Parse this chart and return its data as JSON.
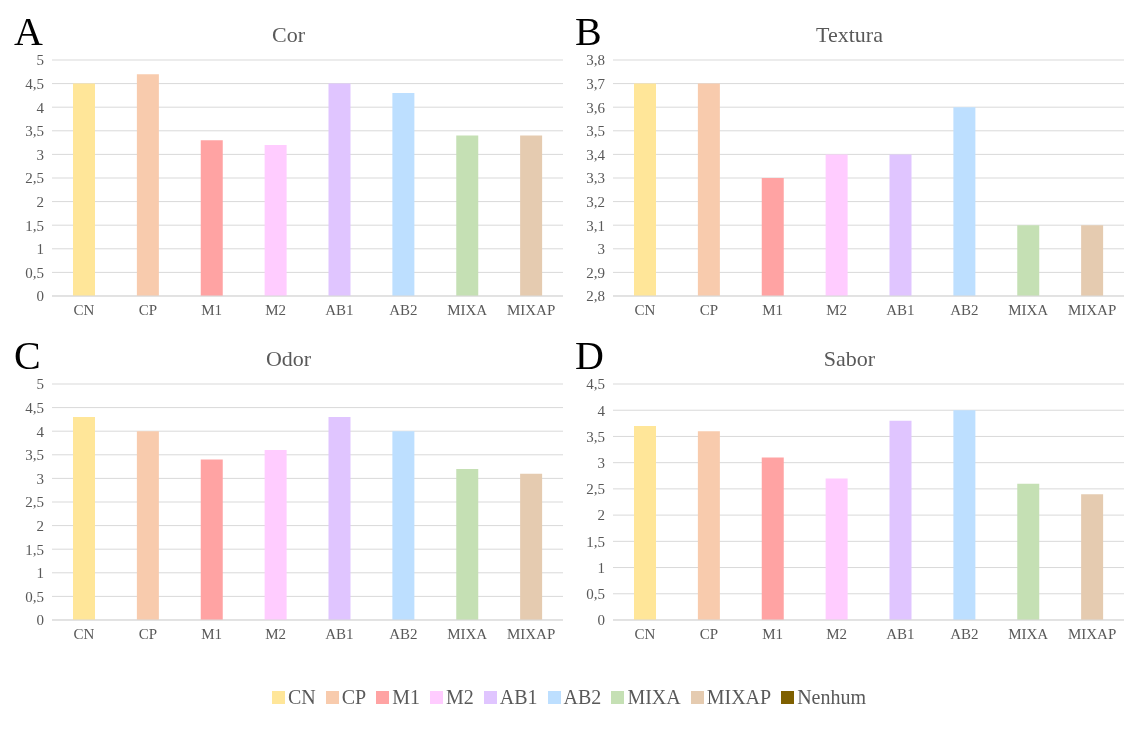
{
  "chart_data": [
    {
      "type": "bar",
      "title": "Cor",
      "annotations": [
        "A"
      ],
      "stacked": true,
      "grid": "y",
      "categories": [
        "CN",
        "CP",
        "M1",
        "M2",
        "AB1",
        "AB2",
        "MIXA",
        "MIXAP"
      ],
      "ylim": [
        0,
        5
      ],
      "yticks": [
        0,
        {
          "value": 0.5,
          "label": "0,5"
        },
        1,
        {
          "value": 1.5,
          "label": "1,5"
        },
        2,
        {
          "value": 2.5,
          "label": "2,5"
        },
        3,
        {
          "value": 3.5,
          "label": "3,5"
        },
        4,
        {
          "value": 4.5,
          "label": "4,5"
        },
        5
      ],
      "series": [
        {
          "color": "#ffe699",
          "values": [
            4.5,
            null,
            null,
            null,
            null,
            null,
            null,
            null
          ]
        },
        {
          "color": "#f8cbad",
          "values": [
            null,
            4.7,
            null,
            null,
            null,
            null,
            null,
            null
          ]
        },
        {
          "color": "#ffa3a3",
          "values": [
            null,
            null,
            3.3,
            null,
            null,
            null,
            null,
            null
          ]
        },
        {
          "color": "#ffccff",
          "values": [
            null,
            null,
            null,
            3.2,
            null,
            null,
            null,
            null
          ]
        },
        {
          "color": "#e0c5ff",
          "values": [
            null,
            null,
            null,
            null,
            4.5,
            null,
            null,
            null
          ]
        },
        {
          "color": "#bddfff",
          "values": [
            null,
            null,
            null,
            null,
            null,
            4.3,
            null,
            null
          ]
        },
        {
          "color": "#c5e0b4",
          "values": [
            null,
            null,
            null,
            null,
            null,
            null,
            3.4,
            null
          ]
        },
        {
          "color": "#e5cbb0",
          "values": [
            null,
            null,
            null,
            null,
            null,
            null,
            null,
            3.4
          ]
        }
      ]
    },
    {
      "type": "bar",
      "title": "Textura",
      "annotations": [
        "B"
      ],
      "stacked": true,
      "grid": "y",
      "categories": [
        "CN",
        "CP",
        "M1",
        "M2",
        "AB1",
        "AB2",
        "MIXA",
        "MIXAP"
      ],
      "ylim": [
        2.8,
        3.8
      ],
      "yticks": [
        {
          "value": 2.8,
          "label": "2,8"
        },
        {
          "value": 2.9,
          "label": "2,9"
        },
        3,
        {
          "value": 3.1,
          "label": "3,1"
        },
        {
          "value": 3.2,
          "label": "3,2"
        },
        {
          "value": 3.3,
          "label": "3,3"
        },
        {
          "value": 3.4,
          "label": "3,4"
        },
        {
          "value": 3.5,
          "label": "3,5"
        },
        {
          "value": 3.6,
          "label": "3,6"
        },
        {
          "value": 3.7,
          "label": "3,7"
        },
        {
          "value": 3.8,
          "label": "3,8"
        }
      ],
      "series": [
        {
          "color": "#ffe699",
          "values": [
            3.7,
            null,
            null,
            null,
            null,
            null,
            null,
            null
          ]
        },
        {
          "color": "#f8cbad",
          "values": [
            null,
            3.7,
            null,
            null,
            null,
            null,
            null,
            null
          ]
        },
        {
          "color": "#ffa3a3",
          "values": [
            null,
            null,
            3.3,
            null,
            null,
            null,
            null,
            null
          ]
        },
        {
          "color": "#ffccff",
          "values": [
            null,
            null,
            null,
            3.4,
            null,
            null,
            null,
            null
          ]
        },
        {
          "color": "#e0c5ff",
          "values": [
            null,
            null,
            null,
            null,
            3.4,
            null,
            null,
            null
          ]
        },
        {
          "color": "#bddfff",
          "values": [
            null,
            null,
            null,
            null,
            null,
            3.6,
            null,
            null
          ]
        },
        {
          "color": "#c5e0b4",
          "values": [
            null,
            null,
            null,
            null,
            null,
            null,
            3.1,
            null
          ]
        },
        {
          "color": "#e5cbb0",
          "values": [
            null,
            null,
            null,
            null,
            null,
            null,
            null,
            3.1
          ]
        }
      ]
    },
    {
      "type": "bar",
      "title": "Odor",
      "annotations": [
        "C"
      ],
      "stacked": true,
      "grid": "y",
      "categories": [
        "CN",
        "CP",
        "M1",
        "M2",
        "AB1",
        "AB2",
        "MIXA",
        "MIXAP"
      ],
      "ylim": [
        0,
        5
      ],
      "yticks": [
        0,
        {
          "value": 0.5,
          "label": "0,5"
        },
        1,
        {
          "value": 1.5,
          "label": "1,5"
        },
        2,
        {
          "value": 2.5,
          "label": "2,5"
        },
        3,
        {
          "value": 3.5,
          "label": "3,5"
        },
        4,
        {
          "value": 4.5,
          "label": "4,5"
        },
        5
      ],
      "series": [
        {
          "color": "#ffe699",
          "values": [
            4.3,
            null,
            null,
            null,
            null,
            null,
            null,
            null
          ]
        },
        {
          "color": "#f8cbad",
          "values": [
            null,
            4.0,
            null,
            null,
            null,
            null,
            null,
            null
          ]
        },
        {
          "color": "#ffa3a3",
          "values": [
            null,
            null,
            3.4,
            null,
            null,
            null,
            null,
            null
          ]
        },
        {
          "color": "#ffccff",
          "values": [
            null,
            null,
            null,
            3.6,
            null,
            null,
            null,
            null
          ]
        },
        {
          "color": "#e0c5ff",
          "values": [
            null,
            null,
            null,
            null,
            4.3,
            null,
            null,
            null
          ]
        },
        {
          "color": "#bddfff",
          "values": [
            null,
            null,
            null,
            null,
            null,
            4.0,
            null,
            null
          ]
        },
        {
          "color": "#c5e0b4",
          "values": [
            null,
            null,
            null,
            null,
            null,
            null,
            3.2,
            null
          ]
        },
        {
          "color": "#e5cbb0",
          "values": [
            null,
            null,
            null,
            null,
            null,
            null,
            null,
            3.1
          ]
        }
      ]
    },
    {
      "type": "bar",
      "title": "Sabor",
      "annotations": [
        "D"
      ],
      "stacked": true,
      "grid": "y",
      "legend": "bottom",
      "categories": [
        "CN",
        "CP",
        "M1",
        "M2",
        "AB1",
        "AB2",
        "MIXA",
        "MIXAP"
      ],
      "ylim": [
        0,
        4.5
      ],
      "yticks": [
        0,
        {
          "value": 0.5,
          "label": "0,5"
        },
        1,
        {
          "value": 1.5,
          "label": "1,5"
        },
        2,
        {
          "value": 2.5,
          "label": "2,5"
        },
        3,
        {
          "value": 3.5,
          "label": "3,5"
        },
        4,
        {
          "value": 4.5,
          "label": "4,5"
        }
      ],
      "series": [
        {
          "name": "CN",
          "color": "#ffe699",
          "values": [
            3.7,
            null,
            null,
            null,
            null,
            null,
            null,
            null
          ]
        },
        {
          "name": "CP",
          "color": "#f8cbad",
          "values": [
            null,
            3.6,
            null,
            null,
            null,
            null,
            null,
            null
          ]
        },
        {
          "name": "M1",
          "color": "#ffa3a3",
          "values": [
            null,
            null,
            3.1,
            null,
            null,
            null,
            null,
            null
          ]
        },
        {
          "name": "M2",
          "color": "#ffccff",
          "values": [
            null,
            null,
            null,
            2.7,
            null,
            null,
            null,
            null
          ]
        },
        {
          "name": "AB1",
          "color": "#e0c5ff",
          "values": [
            null,
            null,
            null,
            null,
            3.8,
            null,
            null,
            null
          ]
        },
        {
          "name": "AB2",
          "color": "#bddfff",
          "values": [
            null,
            null,
            null,
            null,
            null,
            4.0,
            null,
            null
          ]
        },
        {
          "name": "MIXA",
          "color": "#c5e0b4",
          "values": [
            null,
            null,
            null,
            null,
            null,
            null,
            2.6,
            null
          ]
        },
        {
          "name": "MIXAP",
          "color": "#e5cbb0",
          "values": [
            null,
            null,
            null,
            null,
            null,
            null,
            null,
            2.4
          ]
        },
        {
          "name": "Nenhum",
          "color": "#7f6000",
          "values": [
            null,
            null,
            null,
            null,
            null,
            null,
            null,
            null
          ]
        }
      ]
    }
  ]
}
